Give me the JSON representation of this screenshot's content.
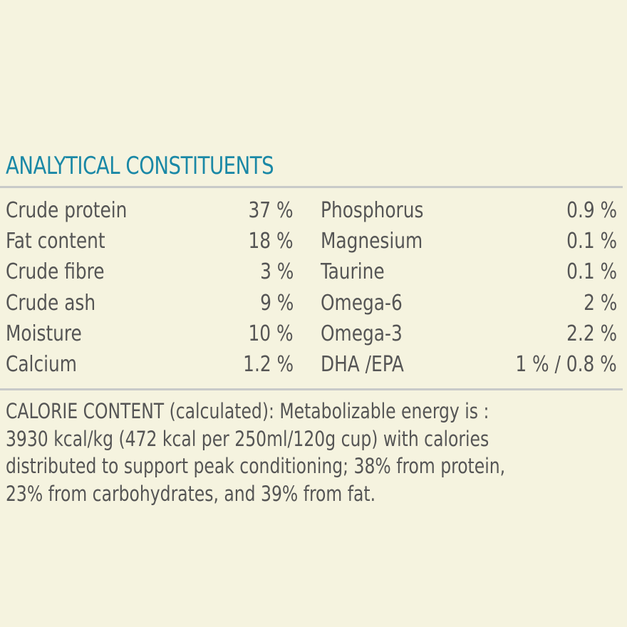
{
  "heading": "ANALYTICAL CONSTITUENTS",
  "constituents_left": [
    {
      "name": "Crude protein",
      "value": "37 %"
    },
    {
      "name": "Fat content",
      "value": "18 %"
    },
    {
      "name": "Crude fibre",
      "value": "3 %"
    },
    {
      "name": "Crude ash",
      "value": "9 %"
    },
    {
      "name": "Moisture",
      "value": "10 %"
    },
    {
      "name": "Calcium",
      "value": "1.2 %"
    }
  ],
  "constituents_right": [
    {
      "name": "Phosphorus",
      "value": "0.9 %"
    },
    {
      "name": "Magnesium",
      "value": "0.1 %"
    },
    {
      "name": "Taurine",
      "value": "0.1 %"
    },
    {
      "name": "Omega-6",
      "value": "2 %"
    },
    {
      "name": "Omega-3",
      "value": "2.2 %"
    },
    {
      "name": "DHA /EPA",
      "value": "1 % / 0.8 %"
    }
  ],
  "calorie_lines": [
    "CALORIE CONTENT (calculated): Metabolizable energy is :",
    "3930 kcal/kg (472 kcal per 250ml/120g cup) with calories",
    "distributed to support peak conditioning; 38% from protein,",
    "23% from carbohydrates, and 39% from fat."
  ],
  "colors": {
    "background": "#f5f3df",
    "heading": "#1a88a6",
    "text": "#555555",
    "rule": "#c8cac9"
  }
}
